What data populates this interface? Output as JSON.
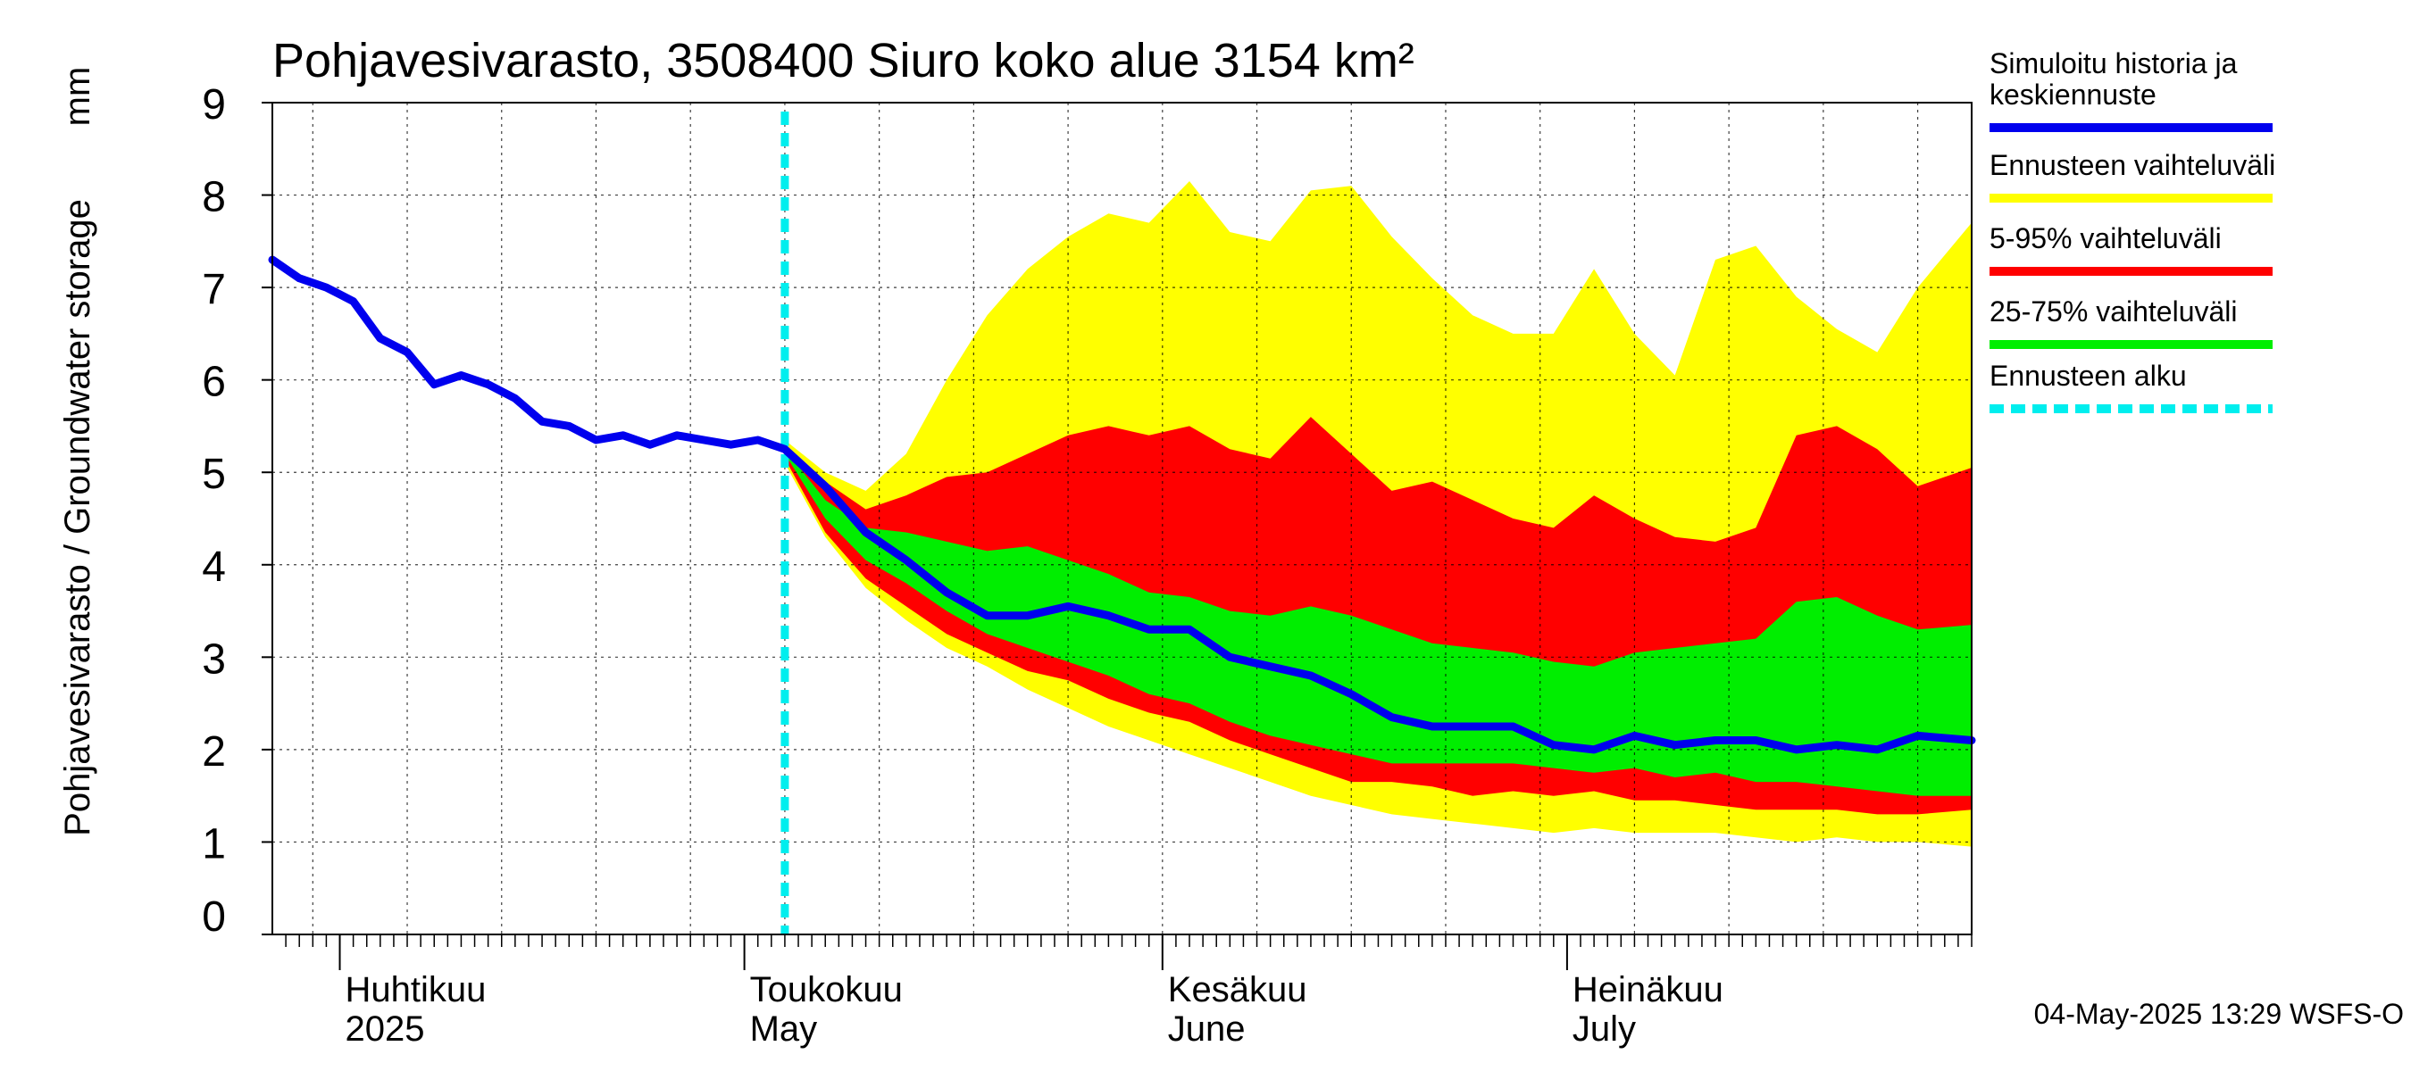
{
  "chart_data": {
    "type": "area",
    "title": "Pohjavesivarasto, 3508400 Siuro koko alue 3154 km²",
    "ylabel": "Pohjavesivarasto / Groundwater storage",
    "yunit": "mm",
    "xlim": [
      "2025-03-27",
      "2025-07-31"
    ],
    "ylim": [
      0,
      9
    ],
    "yticks": [
      0,
      1,
      2,
      3,
      4,
      5,
      6,
      7,
      8,
      9
    ],
    "grid": true,
    "legend_position": "right",
    "forecast_start": "2025-05-04",
    "month_labels": [
      {
        "date": "2025-04-01",
        "line1": "Huhtikuu",
        "line2": "2025"
      },
      {
        "date": "2025-05-01",
        "line1": "Toukokuu",
        "line2": "May"
      },
      {
        "date": "2025-06-01",
        "line1": "Kesäkuu",
        "line2": "June"
      },
      {
        "date": "2025-07-01",
        "line1": "Heinäkuu",
        "line2": "July"
      }
    ],
    "footer": "04-May-2025 13:29 WSFS-O",
    "legend": [
      {
        "label": "Simuloitu historia ja keskiennuste",
        "lines": [
          "Simuloitu historia ja",
          "keskiennuste"
        ],
        "color": "#0000ee",
        "style": "solid"
      },
      {
        "label": "Ennusteen vaihteluväli",
        "lines": [
          "Ennusteen vaihteluväli"
        ],
        "color": "#ffff00",
        "style": "solid"
      },
      {
        "label": "5-95% vaihteluväli",
        "lines": [
          "5-95% vaihteluväli"
        ],
        "color": "#ff0000",
        "style": "solid"
      },
      {
        "label": "25-75% vaihteluväli",
        "lines": [
          "25-75% vaihteluväli"
        ],
        "color": "#00ee00",
        "style": "solid"
      },
      {
        "label": "Ennusteen alku",
        "lines": [
          "Ennusteen alku"
        ],
        "color": "#00eeee",
        "style": "dashed"
      }
    ],
    "bands": {
      "x": [
        "2025-05-04",
        "2025-05-07",
        "2025-05-10",
        "2025-05-13",
        "2025-05-16",
        "2025-05-19",
        "2025-05-22",
        "2025-05-25",
        "2025-05-28",
        "2025-05-31",
        "2025-06-03",
        "2025-06-06",
        "2025-06-09",
        "2025-06-12",
        "2025-06-15",
        "2025-06-18",
        "2025-06-21",
        "2025-06-24",
        "2025-06-27",
        "2025-06-30",
        "2025-07-03",
        "2025-07-06",
        "2025-07-09",
        "2025-07-12",
        "2025-07-15",
        "2025-07-18",
        "2025-07-21",
        "2025-07-24",
        "2025-07-27",
        "2025-07-31"
      ],
      "range_max": [
        5.35,
        5.0,
        4.8,
        5.2,
        6.0,
        6.7,
        7.2,
        7.55,
        7.8,
        7.7,
        8.15,
        7.6,
        7.5,
        8.05,
        8.1,
        7.55,
        7.1,
        6.7,
        6.5,
        6.5,
        7.2,
        6.5,
        6.05,
        7.3,
        7.45,
        6.9,
        6.55,
        6.3,
        7.0,
        7.7
      ],
      "p95": [
        5.3,
        4.9,
        4.6,
        4.75,
        4.95,
        5.0,
        5.2,
        5.4,
        5.5,
        5.4,
        5.5,
        5.25,
        5.15,
        5.6,
        5.2,
        4.8,
        4.9,
        4.7,
        4.5,
        4.4,
        4.75,
        4.5,
        4.3,
        4.25,
        4.4,
        5.4,
        5.5,
        5.25,
        4.85,
        5.05
      ],
      "p75": [
        5.25,
        4.7,
        4.4,
        4.35,
        4.25,
        4.15,
        4.2,
        4.05,
        3.9,
        3.7,
        3.65,
        3.5,
        3.45,
        3.55,
        3.45,
        3.3,
        3.15,
        3.1,
        3.05,
        2.95,
        2.9,
        3.05,
        3.1,
        3.15,
        3.2,
        3.6,
        3.65,
        3.45,
        3.3,
        3.35
      ],
      "p25": [
        5.2,
        4.5,
        4.05,
        3.8,
        3.5,
        3.25,
        3.1,
        2.95,
        2.8,
        2.6,
        2.5,
        2.3,
        2.15,
        2.05,
        1.95,
        1.85,
        1.85,
        1.85,
        1.85,
        1.8,
        1.75,
        1.8,
        1.7,
        1.75,
        1.65,
        1.65,
        1.6,
        1.55,
        1.5,
        1.5
      ],
      "p5": [
        5.15,
        4.35,
        3.85,
        3.55,
        3.25,
        3.05,
        2.85,
        2.75,
        2.55,
        2.4,
        2.3,
        2.1,
        1.95,
        1.8,
        1.65,
        1.65,
        1.6,
        1.5,
        1.55,
        1.5,
        1.55,
        1.45,
        1.45,
        1.4,
        1.35,
        1.35,
        1.35,
        1.3,
        1.3,
        1.35
      ],
      "range_min": [
        5.1,
        4.3,
        3.75,
        3.4,
        3.1,
        2.9,
        2.65,
        2.45,
        2.25,
        2.1,
        1.95,
        1.8,
        1.65,
        1.5,
        1.4,
        1.3,
        1.25,
        1.2,
        1.15,
        1.1,
        1.15,
        1.1,
        1.1,
        1.1,
        1.05,
        1.0,
        1.05,
        1.0,
        1.0,
        0.95
      ]
    },
    "series": [
      {
        "name": "Simuloitu historia ja keskiennuste",
        "x": [
          "2025-03-27",
          "2025-03-29",
          "2025-03-31",
          "2025-04-02",
          "2025-04-04",
          "2025-04-06",
          "2025-04-08",
          "2025-04-10",
          "2025-04-12",
          "2025-04-14",
          "2025-04-16",
          "2025-04-18",
          "2025-04-20",
          "2025-04-22",
          "2025-04-24",
          "2025-04-26",
          "2025-04-28",
          "2025-04-30",
          "2025-05-02",
          "2025-05-04",
          "2025-05-07",
          "2025-05-10",
          "2025-05-13",
          "2025-05-16",
          "2025-05-19",
          "2025-05-22",
          "2025-05-25",
          "2025-05-28",
          "2025-05-31",
          "2025-06-03",
          "2025-06-06",
          "2025-06-09",
          "2025-06-12",
          "2025-06-15",
          "2025-06-18",
          "2025-06-21",
          "2025-06-24",
          "2025-06-27",
          "2025-06-30",
          "2025-07-03",
          "2025-07-06",
          "2025-07-09",
          "2025-07-12",
          "2025-07-15",
          "2025-07-18",
          "2025-07-21",
          "2025-07-24",
          "2025-07-27",
          "2025-07-31"
        ],
        "values": [
          7.3,
          7.1,
          7.0,
          6.85,
          6.45,
          6.3,
          5.95,
          6.05,
          5.95,
          5.8,
          5.55,
          5.5,
          5.35,
          5.4,
          5.3,
          5.4,
          5.35,
          5.3,
          5.35,
          5.25,
          4.85,
          4.35,
          4.05,
          3.7,
          3.45,
          3.45,
          3.55,
          3.45,
          3.3,
          3.3,
          3.0,
          2.9,
          2.8,
          2.6,
          2.35,
          2.25,
          2.25,
          2.25,
          2.05,
          2.0,
          2.15,
          2.05,
          2.1,
          2.1,
          2.0,
          2.05,
          2.0,
          2.15,
          2.1
        ]
      }
    ]
  }
}
